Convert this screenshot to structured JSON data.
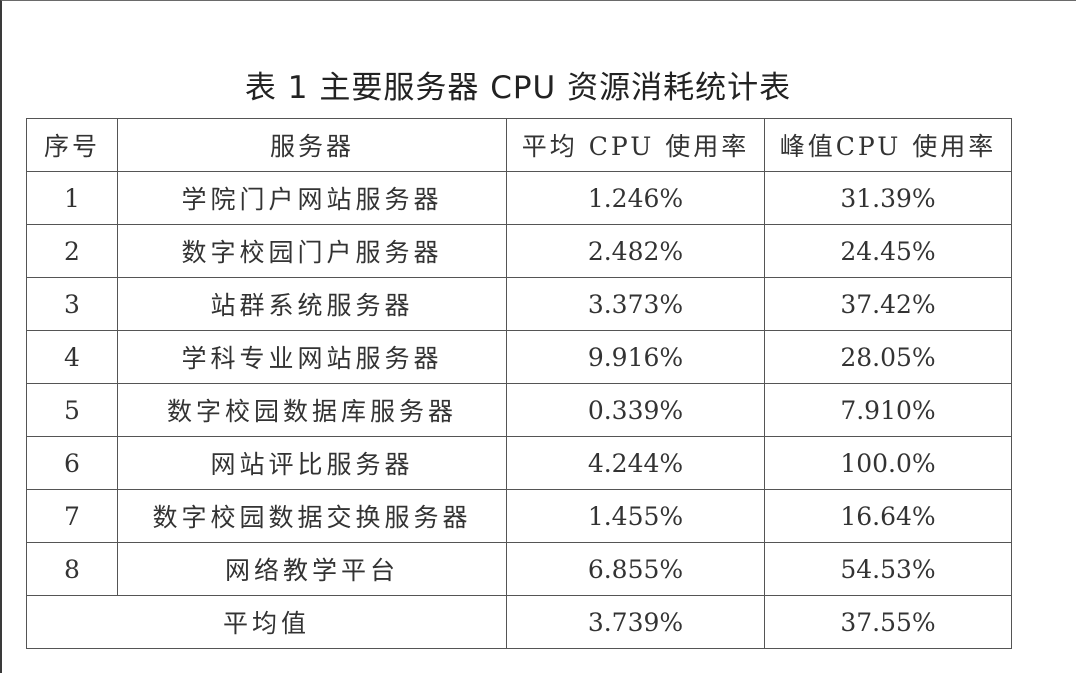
{
  "title": "表 1 主要服务器 CPU 资源消耗统计表",
  "table": {
    "headers": [
      "序号",
      "服务器",
      "平均 CPU 使用率",
      "峰值CPU 使用率"
    ],
    "rows": [
      {
        "index": "1",
        "server": "学院门户网站服务器",
        "avg": "1.246%",
        "peak": "31.39%"
      },
      {
        "index": "2",
        "server": "数字校园门户服务器",
        "avg": "2.482%",
        "peak": "24.45%"
      },
      {
        "index": "3",
        "server": "站群系统服务器",
        "avg": "3.373%",
        "peak": "37.42%"
      },
      {
        "index": "4",
        "server": "学科专业网站服务器",
        "avg": "9.916%",
        "peak": "28.05%"
      },
      {
        "index": "5",
        "server": "数字校园数据库服务器",
        "avg": "0.339%",
        "peak": "7.910%"
      },
      {
        "index": "6",
        "server": "网站评比服务器",
        "avg": "4.244%",
        "peak": "100.0%"
      },
      {
        "index": "7",
        "server": "数字校园数据交换服务器",
        "avg": "1.455%",
        "peak": "16.64%"
      },
      {
        "index": "8",
        "server": "网络教学平台",
        "avg": "6.855%",
        "peak": "54.53%"
      }
    ],
    "footer": {
      "label": "平均值",
      "avg": "3.739%",
      "peak": "37.55%"
    }
  }
}
